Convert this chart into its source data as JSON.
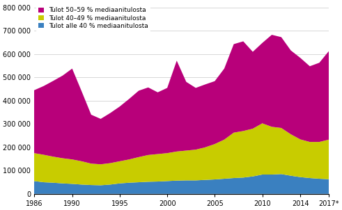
{
  "years": [
    1986,
    1987,
    1988,
    1989,
    1990,
    1991,
    1992,
    1993,
    1994,
    1995,
    1996,
    1997,
    1998,
    1999,
    2000,
    2001,
    2002,
    2003,
    2004,
    2005,
    2006,
    2007,
    2008,
    2009,
    2010,
    2011,
    2012,
    2013,
    2014,
    2015,
    2016,
    2017
  ],
  "alle40": [
    55000,
    50000,
    48000,
    45000,
    43000,
    40000,
    38000,
    37000,
    40000,
    45000,
    48000,
    50000,
    52000,
    53000,
    55000,
    57000,
    58000,
    58000,
    60000,
    62000,
    65000,
    68000,
    70000,
    75000,
    83000,
    83000,
    85000,
    78000,
    72000,
    68000,
    65000,
    63000
  ],
  "40_49": [
    120000,
    118000,
    112000,
    108000,
    105000,
    100000,
    92000,
    90000,
    92000,
    95000,
    100000,
    108000,
    115000,
    118000,
    120000,
    125000,
    128000,
    132000,
    140000,
    152000,
    168000,
    195000,
    200000,
    205000,
    220000,
    205000,
    198000,
    178000,
    162000,
    155000,
    158000,
    170000
  ],
  "50_59": [
    270000,
    295000,
    325000,
    355000,
    390000,
    300000,
    210000,
    195000,
    215000,
    235000,
    260000,
    285000,
    290000,
    265000,
    280000,
    390000,
    295000,
    265000,
    270000,
    270000,
    305000,
    380000,
    385000,
    330000,
    345000,
    395000,
    390000,
    360000,
    350000,
    325000,
    340000,
    380000
  ],
  "color_alle40": "#3a80c0",
  "color_40_49": "#c8cc00",
  "color_50_59": "#b8007a",
  "legend_labels": [
    "Tulot 50–59 % mediaanitulosta",
    "Tulot 40–49 % mediaanitulosta",
    "Tulot alle 40 % mediaanitulosta"
  ],
  "yticks": [
    0,
    100000,
    200000,
    300000,
    400000,
    500000,
    600000,
    700000,
    800000
  ],
  "ytick_labels": [
    "0",
    "100 000",
    "200 000",
    "300 000",
    "400 000",
    "500 000",
    "600 000",
    "700 000",
    "800 000"
  ],
  "xticks": [
    1986,
    1990,
    1995,
    2000,
    2005,
    2010,
    2014,
    2017
  ],
  "xtick_labels": [
    "1986",
    "1990",
    "1995",
    "2000",
    "2005",
    "2010",
    "2014",
    "2017*"
  ],
  "ylim": [
    0,
    820000
  ],
  "xlim": [
    1986,
    2017
  ],
  "background_color": "#ffffff",
  "grid_color": "#c8c8c8"
}
